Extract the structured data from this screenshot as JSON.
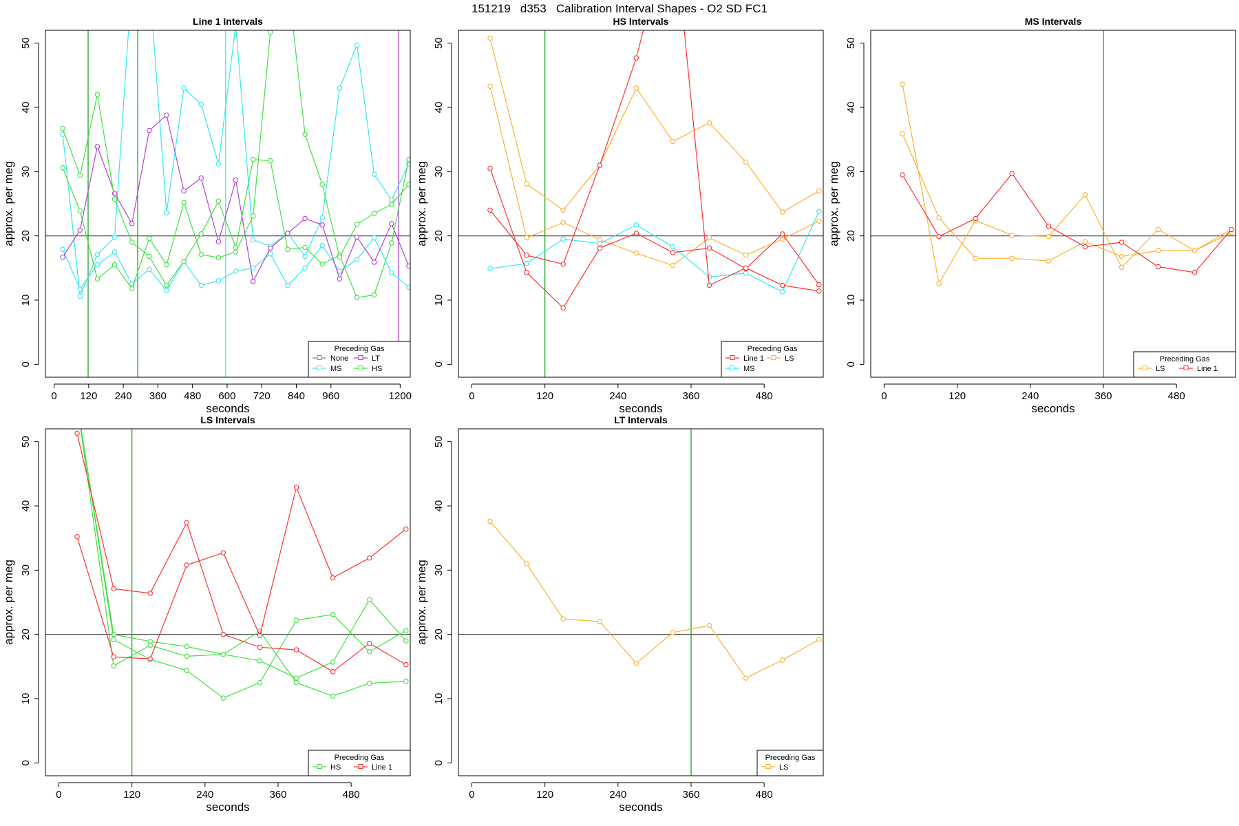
{
  "figure_title": "151219   d353   Calibration Interval Shapes - O2 SD FC1",
  "colors": {
    "Line 1": "#ff3030",
    "LS": "#ffb030",
    "MS": "#30e8f0",
    "HS": "#40e040",
    "LT": "#b040e0",
    "None": "#888888",
    "vline_green": "#20a020",
    "vline_cyan": "#30e8f0",
    "vline_purple": "#b040e0",
    "hline": "#404040"
  },
  "chart_data": [
    {
      "type": "line",
      "title": "Line 1 Intervals",
      "xlabel": "seconds",
      "ylabel": "approx. per meg",
      "xlim": [
        -30,
        1235
      ],
      "ylim": [
        -2,
        52
      ],
      "xticks": [
        0,
        120,
        240,
        360,
        480,
        600,
        720,
        840,
        960,
        1200
      ],
      "yticks": [
        0,
        10,
        20,
        30,
        40,
        50
      ],
      "hline": 20,
      "vlines": [
        {
          "x": 118,
          "color": "vline_green"
        },
        {
          "x": 290,
          "color": "vline_green"
        },
        {
          "x": 595,
          "color": "vline_cyan"
        },
        {
          "x": 1195,
          "color": "vline_purple"
        }
      ],
      "legend": {
        "title": "Preceding Gas",
        "position": "bottom-right",
        "columns": 2,
        "entries": [
          "None",
          "LT",
          "MS",
          "HS"
        ]
      },
      "series": [
        {
          "name": "MS",
          "x": [
            30,
            90,
            150,
            210,
            270,
            330,
            390,
            450,
            510,
            570,
            630,
            690,
            750,
            810,
            870,
            930,
            990,
            1050,
            1110,
            1170,
            1230
          ],
          "y": [
            35.8,
            10.6,
            17.1,
            19.8,
            60.0,
            60.0,
            23.6,
            43.0,
            40.5,
            31.2,
            52.8,
            19.4,
            18.4,
            20.4,
            16.8,
            22.8,
            43.0,
            49.7,
            29.6,
            25.6,
            31.2
          ]
        },
        {
          "name": "MS",
          "x": [
            30,
            90,
            150,
            210,
            270,
            330,
            390,
            450,
            510,
            570,
            630,
            690,
            750,
            810,
            870,
            930,
            990,
            1050,
            1110,
            1170,
            1230
          ],
          "y": [
            17.9,
            11.7,
            15.5,
            17.5,
            12.5,
            14.8,
            11.5,
            16.0,
            12.3,
            13.0,
            14.5,
            15.0,
            17.2,
            12.3,
            15.0,
            18.5,
            14.5,
            16.3,
            19.7,
            14.3,
            12.0
          ]
        },
        {
          "name": "LT",
          "x": [
            30,
            90,
            150,
            210,
            270,
            330,
            390,
            450,
            510,
            570,
            630,
            690,
            750,
            810,
            870,
            930,
            990,
            1050,
            1110,
            1170,
            1230
          ],
          "y": [
            16.7,
            20.9,
            33.9,
            26.6,
            21.9,
            36.4,
            38.8,
            27.0,
            29.0,
            19.1,
            28.7,
            12.9,
            18.1,
            20.4,
            22.7,
            21.7,
            13.3,
            19.8,
            15.9,
            21.9,
            15.3
          ]
        },
        {
          "name": "HS",
          "x": [
            30,
            90,
            150,
            210,
            270,
            330,
            390,
            450,
            510,
            570,
            630,
            690,
            750,
            810,
            870,
            930,
            990,
            1050,
            1110,
            1170,
            1230
          ],
          "y": [
            36.7,
            29.4,
            42.0,
            25.7,
            19.0,
            16.8,
            12.3,
            16.0,
            20.3,
            25.4,
            18.2,
            31.9,
            31.7,
            17.9,
            18.2,
            15.6,
            17.0,
            10.4,
            10.8,
            18.9,
            31.9
          ]
        },
        {
          "name": "HS",
          "x": [
            30,
            90,
            150,
            210,
            270,
            330,
            390,
            450,
            510,
            570,
            630,
            690,
            750,
            810,
            870,
            930,
            990,
            1050,
            1110,
            1170,
            1230
          ],
          "y": [
            30.6,
            23.9,
            13.3,
            15.5,
            11.8,
            19.6,
            15.5,
            25.2,
            17.1,
            16.6,
            17.5,
            23.1,
            51.7,
            60.0,
            35.8,
            28.0,
            16.7,
            21.8,
            23.5,
            24.9,
            28.0
          ]
        }
      ]
    },
    {
      "type": "line",
      "title": "HS Intervals",
      "xlabel": "seconds",
      "ylabel": "approx. per meg",
      "xlim": [
        -22,
        577
      ],
      "ylim": [
        -2,
        52
      ],
      "xticks": [
        0,
        120,
        240,
        360,
        480
      ],
      "yticks": [
        0,
        10,
        20,
        30,
        40,
        50
      ],
      "hline": 20,
      "vlines": [
        {
          "x": 120,
          "color": "vline_green"
        }
      ],
      "legend": {
        "title": "Preceding Gas",
        "position": "bottom-right",
        "columns": 2,
        "entries": [
          "Line 1",
          "LS",
          "MS"
        ]
      },
      "series": [
        {
          "name": "LS",
          "x": [
            30,
            90,
            150,
            210,
            270,
            330,
            390,
            450,
            510,
            570
          ],
          "y": [
            50.8,
            28.1,
            24.0,
            31.0,
            43.0,
            34.7,
            37.6,
            31.5,
            23.7,
            27.0
          ]
        },
        {
          "name": "LS",
          "x": [
            30,
            90,
            150,
            210,
            270,
            330,
            390,
            450,
            510,
            570
          ],
          "y": [
            43.3,
            19.7,
            22.1,
            19.4,
            17.3,
            15.4,
            19.7,
            17.0,
            19.5,
            22.3
          ]
        },
        {
          "name": "MS",
          "x": [
            30,
            90,
            150,
            210,
            270,
            330,
            390,
            450,
            510,
            570
          ],
          "y": [
            14.9,
            15.7,
            19.5,
            18.8,
            21.7,
            18.3,
            13.6,
            14.2,
            11.3,
            23.8
          ]
        },
        {
          "name": "Line 1",
          "x": [
            30,
            90,
            150,
            210,
            270,
            330,
            390,
            450,
            510,
            570
          ],
          "y": [
            30.5,
            14.3,
            8.8,
            18.1,
            20.4,
            17.4,
            18.1,
            14.9,
            20.3,
            12.4
          ]
        },
        {
          "name": "Line 1",
          "x": [
            30,
            90,
            150,
            210,
            270,
            330,
            390,
            450,
            510,
            570
          ],
          "y": [
            24.0,
            17.0,
            15.6,
            31.0,
            47.7,
            70.0,
            12.3,
            15.0,
            12.3,
            11.4
          ]
        }
      ]
    },
    {
      "type": "line",
      "title": "MS Intervals",
      "xlabel": "seconds",
      "ylabel": "approx. per meg",
      "xlim": [
        -22,
        577
      ],
      "ylim": [
        -2,
        52
      ],
      "xticks": [
        0,
        120,
        240,
        360,
        480
      ],
      "yticks": [
        0,
        10,
        20,
        30,
        40,
        50
      ],
      "hline": 20,
      "vlines": [
        {
          "x": 360,
          "color": "vline_green"
        }
      ],
      "legend": {
        "title": "Preceding Gas",
        "position": "bottom-right",
        "columns": 2,
        "entries": [
          "LS",
          "Line 1"
        ]
      },
      "series": [
        {
          "name": "LS",
          "x": [
            30,
            90,
            150,
            210,
            270,
            330,
            390,
            450,
            510,
            570
          ],
          "y": [
            43.6,
            12.6,
            22.4,
            20.1,
            19.9,
            26.4,
            15.1,
            21.0,
            17.7,
            21.0
          ]
        },
        {
          "name": "LS",
          "x": [
            30,
            90,
            150,
            210,
            270,
            330,
            390,
            450,
            510,
            570
          ],
          "y": [
            35.9,
            22.8,
            16.5,
            16.5,
            16.1,
            19.1,
            16.8,
            17.7,
            17.7,
            20.5
          ]
        },
        {
          "name": "Line 1",
          "x": [
            30,
            90,
            150,
            210,
            270,
            330,
            390,
            450,
            510,
            570
          ],
          "y": [
            29.5,
            19.9,
            22.7,
            29.7,
            21.5,
            18.3,
            19.0,
            15.2,
            14.3,
            21.0
          ]
        }
      ]
    },
    {
      "type": "line",
      "title": "LS Intervals",
      "xlabel": "seconds",
      "ylabel": "approx. per meg",
      "xlim": [
        -22,
        577
      ],
      "ylim": [
        -2,
        52
      ],
      "xticks": [
        0,
        120,
        240,
        360,
        480
      ],
      "yticks": [
        0,
        10,
        20,
        30,
        40,
        50
      ],
      "hline": 20,
      "vlines": [
        {
          "x": 120,
          "color": "vline_green"
        }
      ],
      "legend": {
        "title": "Preceding Gas",
        "position": "bottom-right",
        "columns": 2,
        "entries": [
          "HS",
          "Line 1"
        ]
      },
      "series": [
        {
          "name": "HS",
          "x": [
            30,
            90,
            150,
            210,
            270,
            330,
            390,
            450,
            510,
            570
          ],
          "y": [
            56.0,
            20.0,
            18.9,
            18.1,
            16.9,
            20.5,
            12.5,
            10.4,
            12.4,
            12.7
          ]
        },
        {
          "name": "HS",
          "x": [
            30,
            90,
            150,
            210,
            270,
            330,
            390,
            450,
            510,
            570
          ],
          "y": [
            56.0,
            19.2,
            16.1,
            14.4,
            10.1,
            12.5,
            22.2,
            23.1,
            17.3,
            20.6
          ]
        },
        {
          "name": "HS",
          "x": [
            30,
            90,
            150,
            210,
            270,
            330,
            390,
            450,
            510,
            570
          ],
          "y": [
            56.0,
            15.1,
            18.3,
            16.6,
            16.9,
            15.9,
            13.2,
            15.7,
            25.4,
            19.0
          ]
        },
        {
          "name": "Line 1",
          "x": [
            30,
            90,
            150,
            210,
            270,
            330,
            390,
            450,
            510,
            570
          ],
          "y": [
            51.3,
            27.1,
            26.4,
            37.4,
            20.0,
            18.0,
            17.6,
            14.2,
            18.6,
            15.3
          ]
        },
        {
          "name": "Line 1",
          "x": [
            30,
            90,
            150,
            210,
            270,
            330,
            390,
            450,
            510,
            570
          ],
          "y": [
            35.2,
            16.5,
            16.2,
            30.8,
            32.7,
            19.8,
            42.9,
            28.8,
            31.9,
            36.4
          ]
        }
      ]
    },
    {
      "type": "line",
      "title": "LT Intervals",
      "xlabel": "seconds",
      "ylabel": "approx. per meg",
      "xlim": [
        -22,
        577
      ],
      "ylim": [
        -2,
        52
      ],
      "xticks": [
        0,
        120,
        240,
        360,
        480
      ],
      "yticks": [
        0,
        10,
        20,
        30,
        40,
        50
      ],
      "hline": 20,
      "vlines": [
        {
          "x": 360,
          "color": "vline_green"
        }
      ],
      "legend": {
        "title": "Preceding Gas",
        "position": "bottom-right",
        "columns": 1,
        "entries": [
          "LS"
        ]
      },
      "series": [
        {
          "name": "LS",
          "x": [
            30,
            90,
            150,
            210,
            270,
            330,
            390,
            450,
            510,
            570
          ],
          "y": [
            37.6,
            31.0,
            22.4,
            22.0,
            15.5,
            20.3,
            21.4,
            13.2,
            16.0,
            19.2
          ]
        }
      ]
    }
  ]
}
